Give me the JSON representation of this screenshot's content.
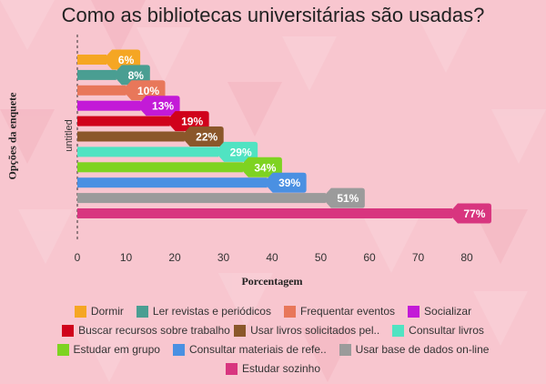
{
  "title": "Como as bibliotecas universitárias são usadas?",
  "chart_data": {
    "type": "bar",
    "orientation": "horizontal",
    "title": "Como as bibliotecas universitárias são usadas?",
    "xlabel": "Porcentagem",
    "ylabel": "Opções da enquete",
    "category_axis_label": "untitled",
    "xlim": [
      0,
      80
    ],
    "xticks": [
      0,
      10,
      20,
      30,
      40,
      50,
      60,
      70,
      80
    ],
    "grid": false,
    "legend_position": "bottom",
    "series": [
      {
        "name": "Dormir",
        "legend_label": "Dormir",
        "value": 6,
        "label": "6%",
        "color": "#f5a623"
      },
      {
        "name": "Ler revistas e periódicos",
        "legend_label": "Ler revistas e periódicos",
        "value": 8,
        "label": "8%",
        "color": "#4a9e92"
      },
      {
        "name": "Frequentar eventos",
        "legend_label": "Frequentar eventos",
        "value": 10,
        "label": "10%",
        "color": "#e8775a"
      },
      {
        "name": "Socializar",
        "legend_label": "Socializar",
        "value": 13,
        "label": "13%",
        "color": "#c31ad7"
      },
      {
        "name": "Buscar recursos sobre trabalho",
        "legend_label": "Buscar recursos sobre trabalho",
        "value": 19,
        "label": "19%",
        "color": "#d0021b"
      },
      {
        "name": "Usar livros solicitados pel..",
        "legend_label": "Usar livros solicitados pel..",
        "value": 22,
        "label": "22%",
        "color": "#8b572a"
      },
      {
        "name": "Consultar livros",
        "legend_label": "Consultar livros",
        "value": 29,
        "label": "29%",
        "color": "#50e3c2"
      },
      {
        "name": "Estudar em grupo",
        "legend_label": "Estudar em grupo",
        "value": 34,
        "label": "34%",
        "color": "#7ed321"
      },
      {
        "name": "Consultar materiais de refe..",
        "legend_label": "Consultar materiais de refe..",
        "value": 39,
        "label": "39%",
        "color": "#4a90e2"
      },
      {
        "name": "Usar base de dados on-line",
        "legend_label": "Usar base de dados on-line",
        "value": 51,
        "label": "51%",
        "color": "#9b9b9b"
      },
      {
        "name": "Estudar sozinho",
        "legend_label": "Estudar sozinho",
        "value": 77,
        "label": "77%",
        "color": "#d8357f"
      }
    ]
  }
}
